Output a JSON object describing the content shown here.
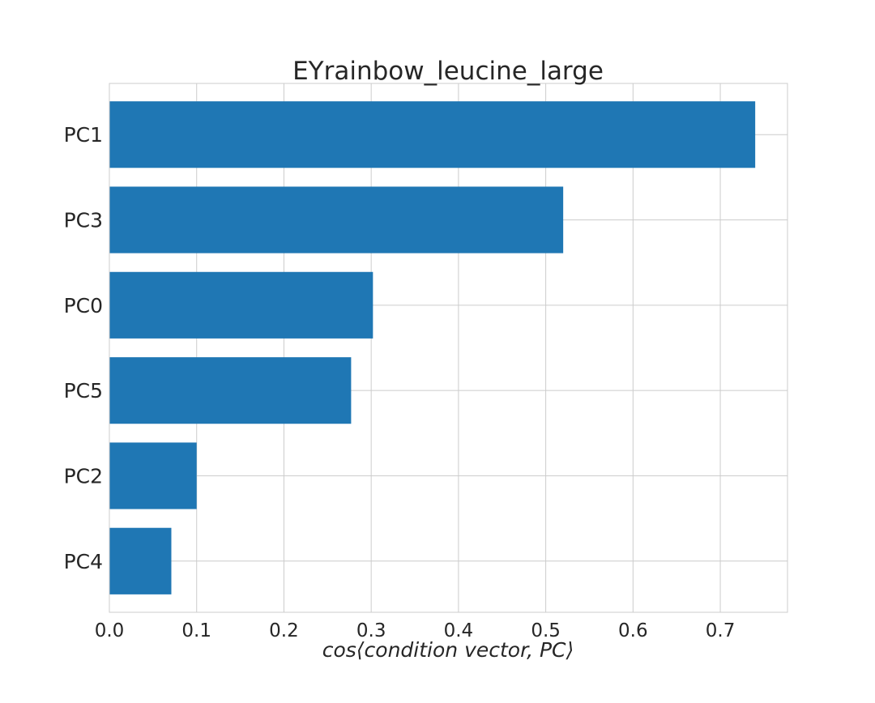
{
  "chart_data": {
    "type": "bar",
    "orientation": "horizontal",
    "title": "EYrainbow_leucine_large",
    "xlabel": "cos⟨condition vector, PC⟩",
    "ylabel": "",
    "categories": [
      "PC1",
      "PC3",
      "PC0",
      "PC5",
      "PC2",
      "PC4"
    ],
    "values": [
      0.74,
      0.52,
      0.302,
      0.277,
      0.1,
      0.071
    ],
    "xlim": [
      0,
      0.777
    ],
    "xticks": [
      "0.0",
      "0.1",
      "0.2",
      "0.3",
      "0.4",
      "0.5",
      "0.6",
      "0.7"
    ],
    "grid": true,
    "bar_color": "#1f77b4",
    "grid_color": "#cccccc"
  }
}
